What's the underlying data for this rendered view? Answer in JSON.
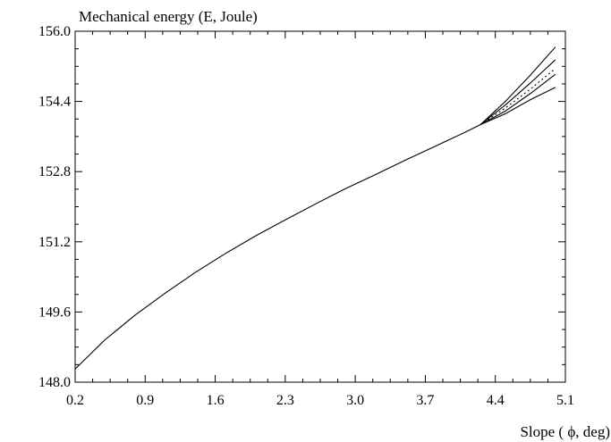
{
  "chart_data": {
    "type": "line",
    "ylabel": "Mechanical energy (E, Joule)",
    "xlabel": "Slope ( ϕ, deg)",
    "xlim": [
      0.2,
      5.1
    ],
    "ylim": [
      148.0,
      156.0
    ],
    "x_ticks": [
      "0.2",
      "0.9",
      "1.6",
      "2.3",
      "3.0",
      "3.7",
      "4.4",
      "5.1"
    ],
    "y_ticks": [
      "148.0",
      "149.6",
      "151.2",
      "152.8",
      "154.4",
      "156.0"
    ],
    "grid": false,
    "legend": "none",
    "series": [
      {
        "style": "solid",
        "x": [
          0.2,
          0.5,
          0.8,
          1.1,
          1.4,
          1.7,
          2.0,
          2.3,
          2.6,
          2.9,
          3.2,
          3.5,
          3.8,
          4.1,
          4.25,
          4.5,
          4.75,
          5.0
        ],
        "y": [
          148.3,
          148.97,
          149.53,
          150.03,
          150.5,
          150.93,
          151.33,
          151.7,
          152.06,
          152.41,
          152.73,
          153.06,
          153.38,
          153.7,
          153.87,
          154.4,
          155.0,
          155.64
        ]
      },
      {
        "style": "solid",
        "x": [
          4.25,
          4.5,
          4.75,
          5.0
        ],
        "y": [
          153.87,
          154.32,
          154.82,
          155.35
        ]
      },
      {
        "style": "dotted",
        "x": [
          4.25,
          4.5,
          4.75,
          5.0
        ],
        "y": [
          153.87,
          154.25,
          154.68,
          155.15
        ]
      },
      {
        "style": "solid",
        "x": [
          4.25,
          4.5,
          4.75,
          5.0
        ],
        "y": [
          153.87,
          154.18,
          154.58,
          155.02
        ]
      },
      {
        "style": "solid",
        "x": [
          4.25,
          4.5,
          4.75,
          5.0
        ],
        "y": [
          153.87,
          154.12,
          154.44,
          154.72
        ]
      }
    ]
  }
}
